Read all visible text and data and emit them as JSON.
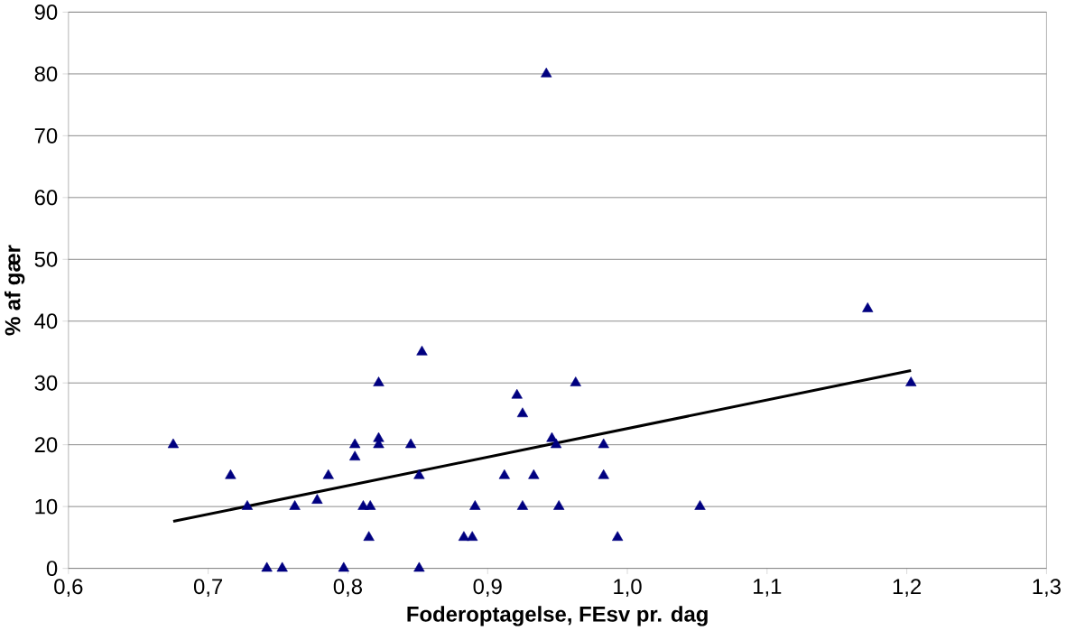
{
  "chart_data": {
    "type": "scatter",
    "xlabel": "Foderoptagelse, FEsv pr. dag",
    "ylabel": "% af gær",
    "xlim": [
      0.6,
      1.3
    ],
    "ylim": [
      0,
      90
    ],
    "xticks": [
      {
        "value": 0.6,
        "label": "0,6"
      },
      {
        "value": 0.7,
        "label": "0,7"
      },
      {
        "value": 0.8,
        "label": "0,8"
      },
      {
        "value": 0.9,
        "label": "0,9"
      },
      {
        "value": 1.0,
        "label": "1,0"
      },
      {
        "value": 1.1,
        "label": "1,1"
      },
      {
        "value": 1.2,
        "label": "1,2"
      },
      {
        "value": 1.3,
        "label": "1,3"
      }
    ],
    "yticks": [
      0,
      10,
      20,
      30,
      40,
      50,
      60,
      70,
      80,
      90
    ],
    "grid": "y",
    "series": [
      {
        "marker": "triangle",
        "color": "#000080",
        "x": [
          0.675,
          0.716,
          0.728,
          0.742,
          0.753,
          0.762,
          0.778,
          0.786,
          0.797,
          0.805,
          0.805,
          0.811,
          0.816,
          0.815,
          0.822,
          0.822,
          0.822,
          0.845,
          0.851,
          0.851,
          0.853,
          0.883,
          0.889,
          0.891,
          0.912,
          0.921,
          0.925,
          0.925,
          0.933,
          0.942,
          0.946,
          0.949,
          0.951,
          0.963,
          0.983,
          0.983,
          0.993,
          1.052,
          1.172,
          1.203
        ],
        "values": [
          20,
          15,
          10,
          0,
          0,
          10,
          11,
          15,
          0,
          20,
          18,
          10,
          10,
          5,
          30,
          21,
          20,
          20,
          15,
          0,
          35,
          5,
          5,
          10,
          15,
          28,
          25,
          10,
          15,
          80,
          21,
          20,
          10,
          30,
          20,
          15,
          5,
          10,
          42,
          30
        ]
      },
      {
        "type": "line",
        "marker": "none",
        "color": "#000000",
        "x": [
          0.675,
          1.203
        ],
        "values": [
          7.6,
          32.0
        ]
      }
    ]
  }
}
